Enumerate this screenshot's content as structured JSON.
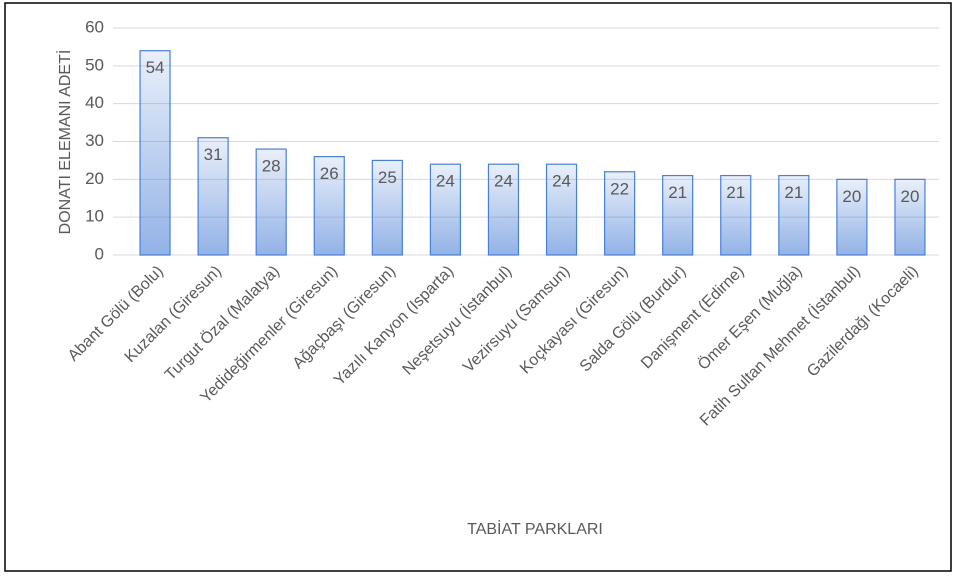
{
  "chart_data": {
    "type": "bar",
    "y_label": "DONATI ELEMANI ADETİ",
    "x_label": "TABİAT PARKLARI",
    "categories": [
      "Abant Gölü (Bolu)",
      "Kuzalan (Giresun)",
      "Turgut Özal (Malatya)",
      "Yedideğirmenler (Giresun)",
      "Ağaçbaşı (Giresun)",
      "Yazılı Kanyon (Isparta)",
      "Neşetsuyu (İstanbul)",
      "Vezirsuyu (Samsun)",
      "Koçkayası (Giresun)",
      "Salda Gölü (Burdur)",
      "Danişment (Edirne)",
      "Ömer Eşen (Muğla)",
      "Fatih Sultan Mehmet (İstanbul)",
      "Gazilerdağı (Kocaeli)"
    ],
    "values": [
      54,
      31,
      28,
      26,
      25,
      24,
      24,
      24,
      22,
      21,
      21,
      21,
      20,
      20
    ],
    "color": "#4a7fd6",
    "ylim": [
      0,
      60
    ],
    "yticks": [
      0,
      10,
      20,
      30,
      40,
      50,
      60
    ],
    "grid": true
  }
}
